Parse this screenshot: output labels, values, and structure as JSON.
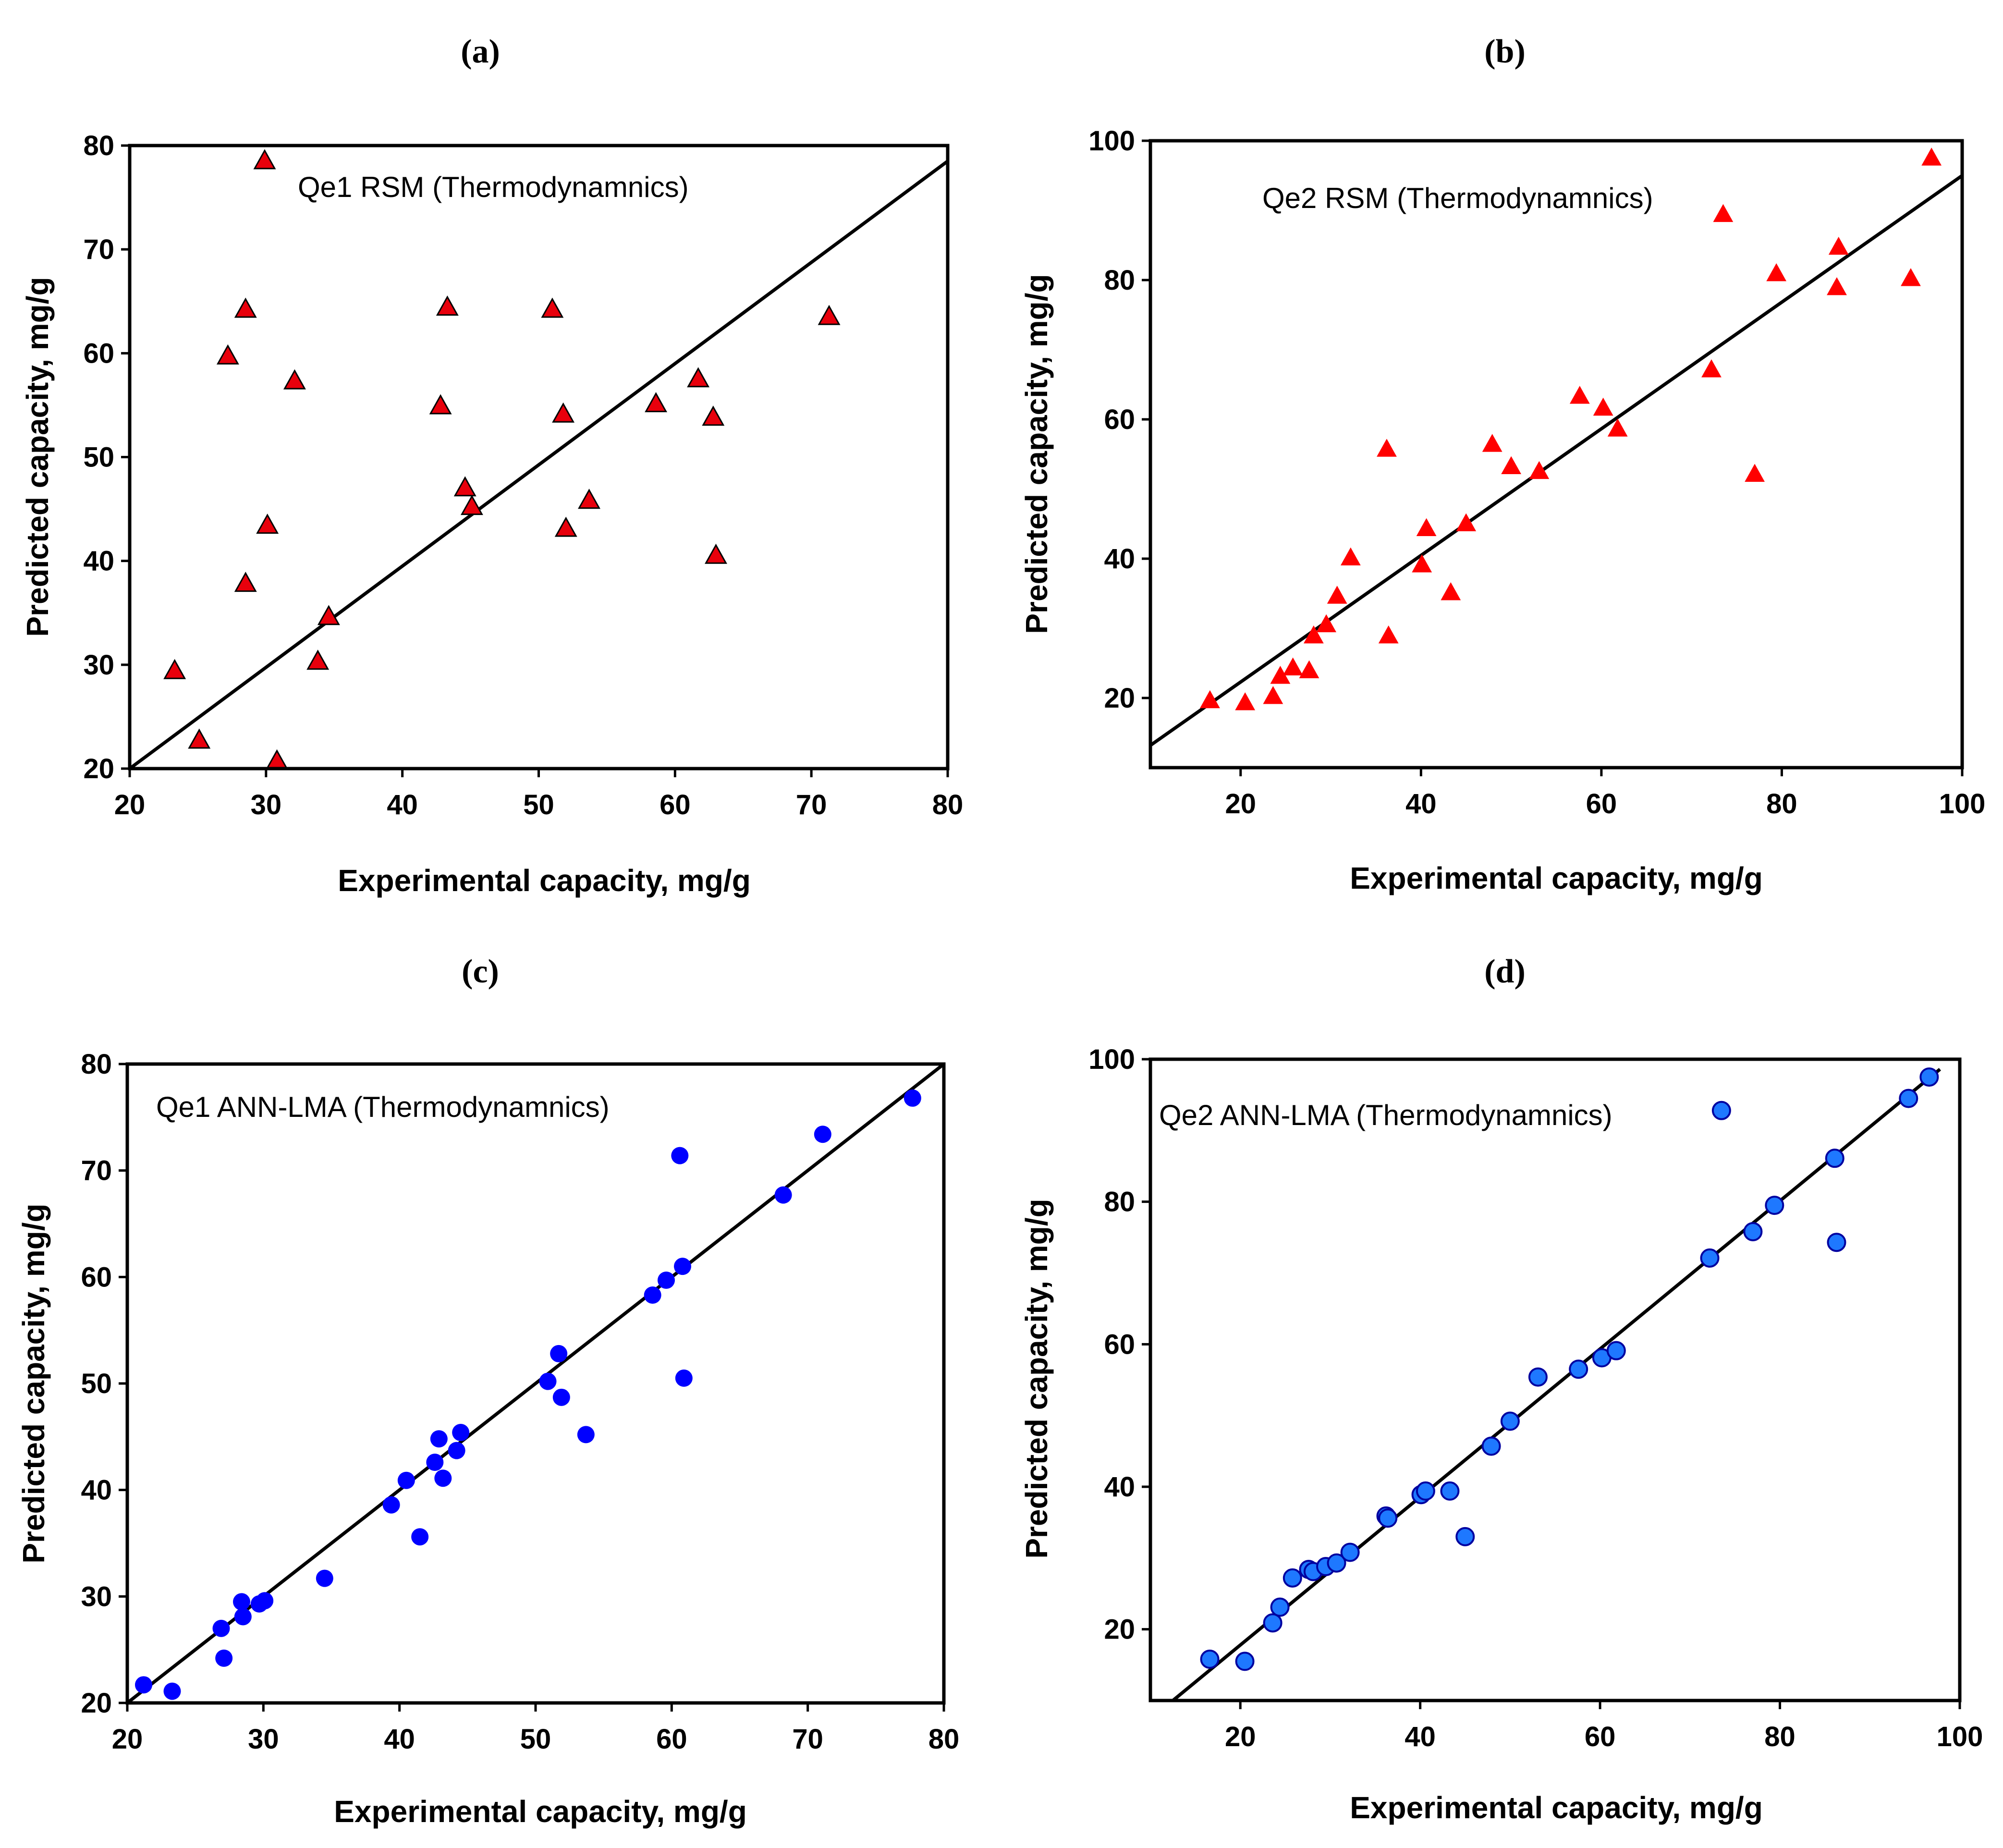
{
  "chart_data": [
    {
      "type": "scatter",
      "panel_label": "(a)",
      "legend_label": "Qe1 RSM (Thermodynamnics)",
      "xlabel": "Experimental capacity, mg/g",
      "ylabel": "Predicted capacity, mg/g",
      "xlim": [
        20,
        80
      ],
      "ylim": [
        20,
        80
      ],
      "xticks": [
        20,
        30,
        40,
        50,
        60,
        70,
        80
      ],
      "yticks": [
        20,
        30,
        40,
        50,
        60,
        70,
        80
      ],
      "marker": "triangle",
      "marker_color": "#e8000c",
      "fit_line": {
        "x": [
          20,
          80
        ],
        "y": [
          20,
          78.5
        ]
      },
      "points": [
        {
          "x": 23.3,
          "y": 29.4
        },
        {
          "x": 25.1,
          "y": 22.7
        },
        {
          "x": 27.2,
          "y": 59.7
        },
        {
          "x": 28.5,
          "y": 64.2
        },
        {
          "x": 28.5,
          "y": 37.8
        },
        {
          "x": 29.9,
          "y": 78.5
        },
        {
          "x": 30.1,
          "y": 43.4
        },
        {
          "x": 30.8,
          "y": 20.7
        },
        {
          "x": 32.1,
          "y": 57.3
        },
        {
          "x": 33.8,
          "y": 30.3
        },
        {
          "x": 34.6,
          "y": 34.6
        },
        {
          "x": 42.8,
          "y": 54.9
        },
        {
          "x": 43.3,
          "y": 64.4
        },
        {
          "x": 44.6,
          "y": 47.0
        },
        {
          "x": 45.1,
          "y": 45.2
        },
        {
          "x": 51.0,
          "y": 64.2
        },
        {
          "x": 51.8,
          "y": 54.1
        },
        {
          "x": 52.0,
          "y": 43.1
        },
        {
          "x": 53.7,
          "y": 45.8
        },
        {
          "x": 58.6,
          "y": 55.1
        },
        {
          "x": 61.7,
          "y": 57.5
        },
        {
          "x": 62.8,
          "y": 53.8
        },
        {
          "x": 63.0,
          "y": 40.5
        },
        {
          "x": 71.3,
          "y": 63.5
        }
      ]
    },
    {
      "type": "scatter",
      "panel_label": "(b)",
      "legend_label": "Qe2 RSM (Thermodynamnics)",
      "xlabel": "Experimental capacity, mg/g",
      "ylabel": "Predicted capacity, mg/g",
      "xlim": [
        10,
        100
      ],
      "ylim": [
        10,
        100
      ],
      "xticks": [
        20,
        40,
        60,
        80,
        100
      ],
      "yticks": [
        20,
        40,
        60,
        80,
        100
      ],
      "marker": "triangle",
      "marker_color": "#ff0000",
      "fit_line": {
        "x": [
          10,
          100
        ],
        "y": [
          13.2,
          95.0
        ]
      },
      "points": [
        {
          "x": 16.6,
          "y": 19.6
        },
        {
          "x": 20.5,
          "y": 19.3
        },
        {
          "x": 23.6,
          "y": 20.2
        },
        {
          "x": 24.4,
          "y": 23.1
        },
        {
          "x": 25.8,
          "y": 24.3
        },
        {
          "x": 27.6,
          "y": 23.9
        },
        {
          "x": 28.1,
          "y": 28.9
        },
        {
          "x": 29.5,
          "y": 30.5
        },
        {
          "x": 30.7,
          "y": 34.6
        },
        {
          "x": 32.2,
          "y": 40.1
        },
        {
          "x": 36.2,
          "y": 55.7
        },
        {
          "x": 36.4,
          "y": 28.9
        },
        {
          "x": 40.1,
          "y": 39.1
        },
        {
          "x": 40.6,
          "y": 44.3
        },
        {
          "x": 43.3,
          "y": 35.1
        },
        {
          "x": 45.0,
          "y": 45.0
        },
        {
          "x": 47.9,
          "y": 56.4
        },
        {
          "x": 50.0,
          "y": 53.2
        },
        {
          "x": 53.1,
          "y": 52.5
        },
        {
          "x": 57.6,
          "y": 63.3
        },
        {
          "x": 60.2,
          "y": 61.6
        },
        {
          "x": 61.8,
          "y": 58.6
        },
        {
          "x": 72.2,
          "y": 67.1
        },
        {
          "x": 73.5,
          "y": 89.4
        },
        {
          "x": 77.0,
          "y": 52.1
        },
        {
          "x": 79.4,
          "y": 80.9
        },
        {
          "x": 86.1,
          "y": 78.9
        },
        {
          "x": 86.3,
          "y": 84.7
        },
        {
          "x": 94.3,
          "y": 80.2
        },
        {
          "x": 96.6,
          "y": 97.5
        }
      ]
    },
    {
      "type": "scatter",
      "panel_label": "(c)",
      "legend_label": "Qe1 ANN-LMA (Thermodynamnics)",
      "xlabel": "Experimental capacity, mg/g",
      "ylabel": "Predicted capacity, mg/g",
      "xlim": [
        20,
        80
      ],
      "ylim": [
        20,
        80
      ],
      "xticks": [
        20,
        30,
        40,
        50,
        60,
        70,
        80
      ],
      "yticks": [
        20,
        30,
        40,
        50,
        60,
        70,
        80
      ],
      "marker": "circle",
      "marker_color": "#0000ff",
      "fit_line": {
        "x": [
          20,
          80
        ],
        "y": [
          20,
          80
        ]
      },
      "points": [
        {
          "x": 21.2,
          "y": 21.7
        },
        {
          "x": 23.3,
          "y": 21.1
        },
        {
          "x": 26.9,
          "y": 27.0
        },
        {
          "x": 27.1,
          "y": 24.2
        },
        {
          "x": 28.4,
          "y": 29.5
        },
        {
          "x": 28.5,
          "y": 28.1
        },
        {
          "x": 29.7,
          "y": 29.3
        },
        {
          "x": 30.1,
          "y": 29.6
        },
        {
          "x": 34.5,
          "y": 31.7
        },
        {
          "x": 39.4,
          "y": 38.6
        },
        {
          "x": 40.5,
          "y": 40.9
        },
        {
          "x": 41.5,
          "y": 35.6
        },
        {
          "x": 42.6,
          "y": 42.6
        },
        {
          "x": 42.9,
          "y": 44.8
        },
        {
          "x": 43.2,
          "y": 41.1
        },
        {
          "x": 44.2,
          "y": 43.7
        },
        {
          "x": 44.5,
          "y": 45.4
        },
        {
          "x": 50.9,
          "y": 50.2
        },
        {
          "x": 51.7,
          "y": 52.8
        },
        {
          "x": 51.9,
          "y": 48.7
        },
        {
          "x": 53.7,
          "y": 45.2
        },
        {
          "x": 58.6,
          "y": 58.3
        },
        {
          "x": 59.6,
          "y": 59.7
        },
        {
          "x": 60.6,
          "y": 71.4
        },
        {
          "x": 60.8,
          "y": 61.0
        },
        {
          "x": 60.9,
          "y": 50.5
        },
        {
          "x": 68.2,
          "y": 67.7
        },
        {
          "x": 71.1,
          "y": 73.4
        },
        {
          "x": 77.7,
          "y": 76.8
        }
      ]
    },
    {
      "type": "scatter",
      "panel_label": "(d)",
      "legend_label": "Qe2 ANN-LMA (Thermodynamnics)",
      "xlabel": "Experimental capacity, mg/g",
      "ylabel": "Predicted capacity, mg/g",
      "xlim": [
        10,
        100
      ],
      "ylim": [
        10,
        100
      ],
      "xticks": [
        20,
        40,
        60,
        80,
        100
      ],
      "yticks": [
        20,
        40,
        60,
        80,
        100
      ],
      "marker": "circle",
      "marker_color": "#1e78ff",
      "marker_edge": "#0000a0",
      "fit_line": {
        "x": [
          12.5,
          97.8
        ],
        "y": [
          10,
          98.6
        ]
      },
      "points": [
        {
          "x": 16.6,
          "y": 15.8
        },
        {
          "x": 20.5,
          "y": 15.5
        },
        {
          "x": 23.6,
          "y": 20.9
        },
        {
          "x": 24.4,
          "y": 23.1
        },
        {
          "x": 25.8,
          "y": 27.2
        },
        {
          "x": 27.6,
          "y": 28.4
        },
        {
          "x": 28.1,
          "y": 28.1
        },
        {
          "x": 29.5,
          "y": 28.8
        },
        {
          "x": 30.7,
          "y": 29.3
        },
        {
          "x": 32.2,
          "y": 30.8
        },
        {
          "x": 36.2,
          "y": 35.9
        },
        {
          "x": 36.4,
          "y": 35.6
        },
        {
          "x": 40.1,
          "y": 38.9
        },
        {
          "x": 40.6,
          "y": 39.4
        },
        {
          "x": 43.3,
          "y": 39.4
        },
        {
          "x": 45.0,
          "y": 33.0
        },
        {
          "x": 47.9,
          "y": 45.7
        },
        {
          "x": 50.0,
          "y": 49.2
        },
        {
          "x": 53.1,
          "y": 55.4
        },
        {
          "x": 57.6,
          "y": 56.5
        },
        {
          "x": 60.2,
          "y": 58.1
        },
        {
          "x": 61.8,
          "y": 59.1
        },
        {
          "x": 72.2,
          "y": 72.1
        },
        {
          "x": 73.5,
          "y": 92.8
        },
        {
          "x": 77.0,
          "y": 75.8
        },
        {
          "x": 79.4,
          "y": 79.5
        },
        {
          "x": 86.1,
          "y": 86.1
        },
        {
          "x": 86.3,
          "y": 74.3
        },
        {
          "x": 94.3,
          "y": 94.5
        },
        {
          "x": 96.6,
          "y": 97.5
        }
      ]
    }
  ]
}
